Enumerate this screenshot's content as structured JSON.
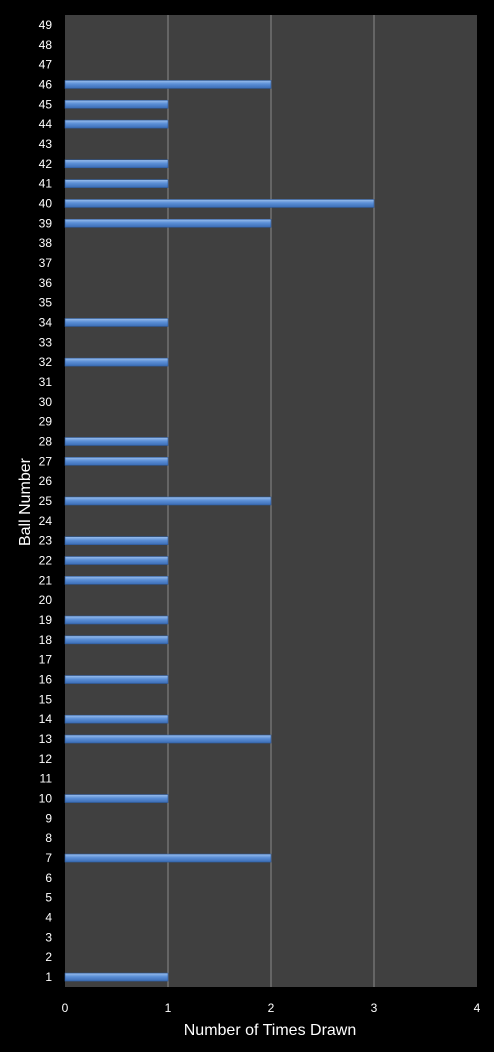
{
  "chart_data": {
    "type": "bar",
    "orientation": "horizontal",
    "xlabel": "Number of Times Drawn",
    "ylabel": "Ball Number",
    "xlim": [
      0,
      4
    ],
    "x_ticks": [
      "0",
      "1",
      "2",
      "3",
      "4"
    ],
    "grid": "vertical",
    "colors": {
      "background": "#000000",
      "plot_area": "#404040",
      "bar": "#5b8fd6",
      "bar_edge": "#9cc0ee",
      "gridline": "#8a8a8a",
      "text": "#ffffff"
    },
    "categories": [
      "1",
      "2",
      "3",
      "4",
      "5",
      "6",
      "7",
      "8",
      "9",
      "10",
      "11",
      "12",
      "13",
      "14",
      "15",
      "16",
      "17",
      "18",
      "19",
      "20",
      "21",
      "22",
      "23",
      "24",
      "25",
      "26",
      "27",
      "28",
      "29",
      "30",
      "31",
      "32",
      "33",
      "34",
      "35",
      "36",
      "37",
      "38",
      "39",
      "40",
      "41",
      "42",
      "43",
      "44",
      "45",
      "46",
      "47",
      "48",
      "49"
    ],
    "values": [
      1,
      0,
      0,
      0,
      0,
      0,
      2,
      0,
      0,
      1,
      0,
      0,
      2,
      1,
      0,
      1,
      0,
      1,
      1,
      0,
      1,
      1,
      1,
      0,
      2,
      0,
      1,
      1,
      0,
      0,
      0,
      1,
      0,
      1,
      0,
      0,
      0,
      0,
      2,
      3,
      1,
      1,
      0,
      1,
      1,
      2,
      0,
      0,
      0
    ]
  }
}
